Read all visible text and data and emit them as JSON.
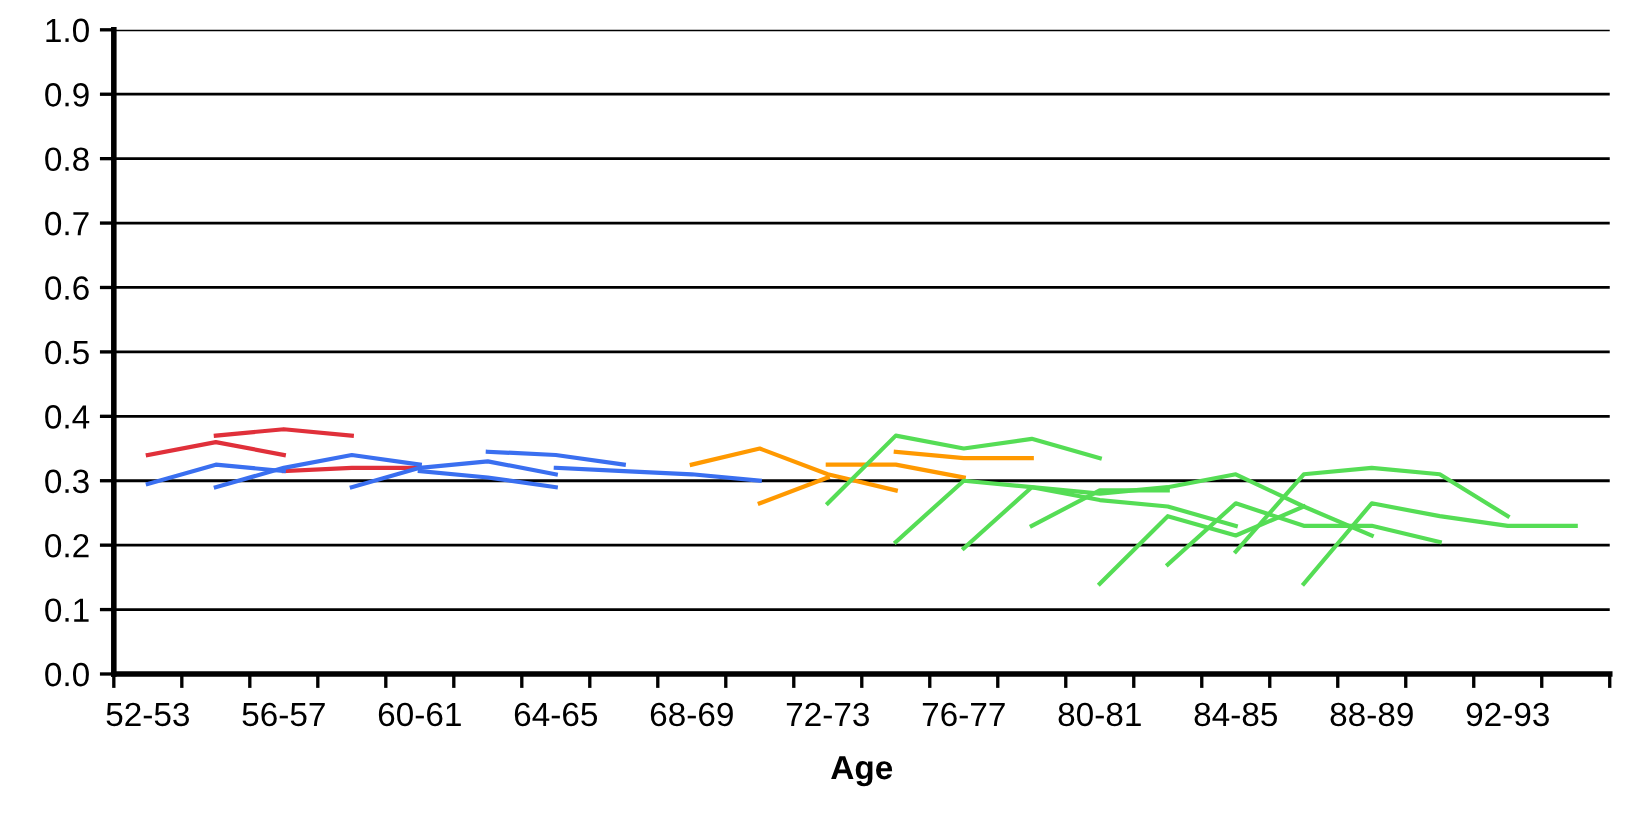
{
  "chart_data": {
    "type": "line",
    "xlabel": "Age",
    "categories": [
      "52-53",
      null,
      "56-57",
      null,
      "60-61",
      null,
      "64-65",
      null,
      "68-69",
      null,
      "72-73",
      null,
      "76-77",
      null,
      "80-81",
      null,
      "84-85",
      null,
      "88-89",
      null,
      "92-93",
      null
    ],
    "ylim": [
      0,
      1
    ],
    "yticks": [
      {
        "value": 0,
        "label": "0.0"
      },
      {
        "value": 0.1,
        "label": "0.1"
      },
      {
        "value": 0.2,
        "label": "0.2"
      },
      {
        "value": 0.3,
        "label": "0.3"
      },
      {
        "value": 0.4,
        "label": "0.4"
      },
      {
        "value": 0.5,
        "label": "0.5"
      },
      {
        "value": 0.6,
        "label": "0.6"
      },
      {
        "value": 0.7,
        "label": "0.7"
      },
      {
        "value": 0.8,
        "label": "0.8"
      },
      {
        "value": 0.9,
        "label": "0.9"
      },
      {
        "value": 1,
        "label": "1.0"
      }
    ],
    "grid": "y",
    "marker": "none",
    "line_style": "solid",
    "series": [
      {
        "color": "#e0303a",
        "values": [
          0.34,
          0.36,
          0.34,
          null,
          null,
          null,
          null,
          null,
          null,
          null,
          null,
          null,
          null,
          null,
          null,
          null,
          null,
          null,
          null,
          null,
          null,
          null
        ]
      },
      {
        "color": "#e0303a",
        "values": [
          null,
          0.37,
          0.38,
          0.37,
          null,
          null,
          null,
          null,
          null,
          null,
          null,
          null,
          null,
          null,
          null,
          null,
          null,
          null,
          null,
          null,
          null,
          null
        ]
      },
      {
        "color": "#e0303a",
        "values": [
          null,
          null,
          0.315,
          0.32,
          0.32,
          null,
          null,
          null,
          null,
          null,
          null,
          null,
          null,
          null,
          null,
          null,
          null,
          null,
          null,
          null,
          null,
          null
        ]
      },
      {
        "color": "#3a6ff0",
        "values": [
          0.295,
          0.325,
          0.315,
          null,
          null,
          null,
          null,
          null,
          null,
          null,
          null,
          null,
          null,
          null,
          null,
          null,
          null,
          null,
          null,
          null,
          null,
          null
        ]
      },
      {
        "color": "#3a6ff0",
        "values": [
          null,
          0.29,
          0.32,
          0.34,
          0.325,
          null,
          null,
          null,
          null,
          null,
          null,
          null,
          null,
          null,
          null,
          null,
          null,
          null,
          null,
          null,
          null,
          null
        ]
      },
      {
        "color": "#3a6ff0",
        "values": [
          null,
          null,
          null,
          0.29,
          0.32,
          0.33,
          0.31,
          null,
          null,
          null,
          null,
          null,
          null,
          null,
          null,
          null,
          null,
          null,
          null,
          null,
          null,
          null
        ]
      },
      {
        "color": "#3a6ff0",
        "values": [
          null,
          null,
          null,
          null,
          0.315,
          0.305,
          0.29,
          null,
          null,
          null,
          null,
          null,
          null,
          null,
          null,
          null,
          null,
          null,
          null,
          null,
          null,
          null
        ]
      },
      {
        "color": "#3a6ff0",
        "values": [
          null,
          null,
          null,
          null,
          null,
          0.345,
          0.34,
          0.325,
          null,
          null,
          null,
          null,
          null,
          null,
          null,
          null,
          null,
          null,
          null,
          null,
          null,
          null
        ]
      },
      {
        "color": "#3a6ff0",
        "values": [
          null,
          null,
          null,
          null,
          null,
          null,
          0.32,
          0.315,
          0.31,
          0.3,
          null,
          null,
          null,
          null,
          null,
          null,
          null,
          null,
          null,
          null,
          null,
          null
        ]
      },
      {
        "color": "#ff9900",
        "values": [
          null,
          null,
          null,
          null,
          null,
          null,
          null,
          null,
          0.325,
          0.35,
          0.31,
          0.285,
          null,
          null,
          null,
          null,
          null,
          null,
          null,
          null,
          null,
          null
        ]
      },
      {
        "color": "#ff9900",
        "values": [
          null,
          null,
          null,
          null,
          null,
          null,
          null,
          null,
          null,
          0.265,
          0.305,
          null,
          null,
          null,
          null,
          null,
          null,
          null,
          null,
          null,
          null,
          null
        ]
      },
      {
        "color": "#ff9900",
        "values": [
          null,
          null,
          null,
          null,
          null,
          null,
          null,
          null,
          null,
          null,
          0.325,
          0.325,
          0.305,
          null,
          null,
          null,
          null,
          null,
          null,
          null,
          null,
          null
        ]
      },
      {
        "color": "#ff9900",
        "values": [
          null,
          null,
          null,
          null,
          null,
          null,
          null,
          null,
          null,
          null,
          null,
          0.345,
          0.335,
          0.335,
          null,
          null,
          null,
          null,
          null,
          null,
          null,
          null
        ]
      },
      {
        "color": "#55dd55",
        "values": [
          null,
          null,
          null,
          null,
          null,
          null,
          null,
          null,
          null,
          null,
          0.265,
          0.37,
          0.35,
          0.365,
          0.335,
          null,
          null,
          null,
          null,
          null,
          null,
          null
        ]
      },
      {
        "color": "#55dd55",
        "values": [
          null,
          null,
          null,
          null,
          null,
          null,
          null,
          null,
          null,
          null,
          null,
          0.205,
          0.3,
          0.29,
          0.27,
          0.26,
          0.23,
          null,
          null,
          null,
          null,
          null
        ]
      },
      {
        "color": "#55dd55",
        "values": [
          null,
          null,
          null,
          null,
          null,
          null,
          null,
          null,
          null,
          null,
          null,
          null,
          0.195,
          0.29,
          0.28,
          0.29,
          0.31,
          0.26,
          0.215,
          null,
          null,
          null
        ]
      },
      {
        "color": "#55dd55",
        "values": [
          null,
          null,
          null,
          null,
          null,
          null,
          null,
          null,
          null,
          null,
          null,
          null,
          null,
          0.23,
          0.285,
          0.285,
          null,
          null,
          null,
          null,
          null,
          null
        ]
      },
      {
        "color": "#55dd55",
        "values": [
          null,
          null,
          null,
          null,
          null,
          null,
          null,
          null,
          null,
          null,
          null,
          null,
          null,
          null,
          0.14,
          0.245,
          0.215,
          0.26,
          null,
          null,
          null,
          null
        ]
      },
      {
        "color": "#55dd55",
        "values": [
          null,
          null,
          null,
          null,
          null,
          null,
          null,
          null,
          null,
          null,
          null,
          null,
          null,
          null,
          null,
          0.17,
          0.265,
          0.23,
          0.23,
          0.205,
          null,
          null
        ]
      },
      {
        "color": "#55dd55",
        "values": [
          null,
          null,
          null,
          null,
          null,
          null,
          null,
          null,
          null,
          null,
          null,
          null,
          null,
          null,
          null,
          null,
          0.19,
          0.31,
          0.32,
          0.31,
          0.245,
          null
        ]
      },
      {
        "color": "#55dd55",
        "values": [
          null,
          null,
          null,
          null,
          null,
          null,
          null,
          null,
          null,
          null,
          null,
          null,
          null,
          null,
          null,
          null,
          null,
          0.14,
          0.265,
          0.245,
          0.23,
          0.23
        ]
      }
    ]
  }
}
